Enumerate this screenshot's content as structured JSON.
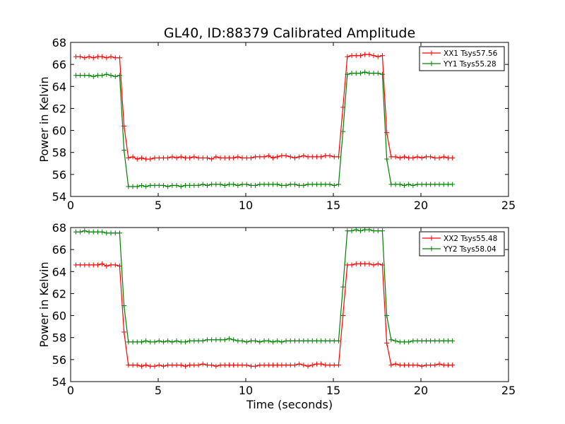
{
  "title": "GL40, ID:88379 Calibrated Amplitude",
  "xlabel": "Time (seconds)",
  "ylabel": "Power in Kelvin",
  "colors": {
    "red": "#ff0000",
    "green": "#008000"
  },
  "chart_data": [
    {
      "type": "line",
      "title": "GL40, ID:88379 Calibrated Amplitude",
      "xlabel": "",
      "ylabel": "Power in Kelvin",
      "xlim": [
        0,
        25
      ],
      "ylim": [
        54,
        68
      ],
      "xticks": [
        "0",
        "5",
        "10",
        "15",
        "20",
        "25"
      ],
      "yticks": [
        "54",
        "56",
        "58",
        "60",
        "62",
        "64",
        "66",
        "68"
      ],
      "legend_position": "top-right",
      "x": [
        0.3,
        0.55,
        0.8,
        1.05,
        1.3,
        1.55,
        1.8,
        2.05,
        2.3,
        2.55,
        2.8,
        3.05,
        3.3,
        3.55,
        3.8,
        4.05,
        4.3,
        4.55,
        4.8,
        5.05,
        5.3,
        5.55,
        5.8,
        6.05,
        6.3,
        6.55,
        6.8,
        7.05,
        7.3,
        7.55,
        7.8,
        8.05,
        8.3,
        8.55,
        8.8,
        9.05,
        9.3,
        9.55,
        9.8,
        10.05,
        10.3,
        10.55,
        10.8,
        11.05,
        11.3,
        11.55,
        11.8,
        12.05,
        12.3,
        12.55,
        12.8,
        13.05,
        13.3,
        13.55,
        13.8,
        14.05,
        14.3,
        14.55,
        14.8,
        15.05,
        15.3,
        15.55,
        15.8,
        16.05,
        16.3,
        16.55,
        16.8,
        17.05,
        17.3,
        17.55,
        17.8,
        18.05,
        18.3,
        18.55,
        18.8,
        19.05,
        19.3,
        19.55,
        19.8,
        20.05,
        20.3,
        20.55,
        20.8,
        21.05,
        21.3,
        21.55,
        21.8
      ],
      "series": [
        {
          "name": "XX1 Tsys57.56",
          "color": "#ff0000",
          "values": [
            66.7,
            66.7,
            66.6,
            66.7,
            66.6,
            66.7,
            66.7,
            66.6,
            66.7,
            66.6,
            66.6,
            60.4,
            57.5,
            57.6,
            57.4,
            57.5,
            57.4,
            57.4,
            57.5,
            57.5,
            57.5,
            57.5,
            57.6,
            57.5,
            57.6,
            57.5,
            57.5,
            57.6,
            57.5,
            57.5,
            57.5,
            57.4,
            57.6,
            57.5,
            57.5,
            57.5,
            57.5,
            57.6,
            57.5,
            57.5,
            57.5,
            57.6,
            57.6,
            57.6,
            57.7,
            57.5,
            57.6,
            57.7,
            57.7,
            57.6,
            57.5,
            57.6,
            57.7,
            57.6,
            57.6,
            57.6,
            57.6,
            57.7,
            57.7,
            57.6,
            57.6,
            62.1,
            66.7,
            66.8,
            66.8,
            66.8,
            66.9,
            66.9,
            66.8,
            66.7,
            66.8,
            59.8,
            57.6,
            57.6,
            57.5,
            57.6,
            57.5,
            57.5,
            57.6,
            57.5,
            57.6,
            57.6,
            57.5,
            57.5,
            57.6,
            57.5,
            57.5
          ]
        },
        {
          "name": "YY1 Tsys55.28",
          "color": "#008000",
          "values": [
            65.0,
            65.0,
            65.0,
            65.0,
            64.9,
            65.0,
            65.0,
            65.1,
            65.0,
            64.9,
            65.0,
            58.2,
            54.9,
            54.9,
            54.9,
            55.0,
            54.9,
            55.0,
            55.0,
            55.0,
            55.0,
            54.9,
            55.0,
            55.0,
            54.9,
            55.0,
            55.0,
            55.0,
            55.0,
            55.1,
            55.0,
            55.1,
            55.1,
            55.1,
            55.0,
            55.1,
            55.1,
            55.0,
            55.1,
            55.1,
            55.0,
            55.0,
            55.1,
            55.1,
            55.1,
            55.1,
            55.1,
            55.0,
            55.0,
            55.1,
            55.1,
            55.0,
            55.0,
            55.1,
            55.1,
            55.1,
            55.1,
            55.1,
            55.1,
            55.0,
            55.1,
            59.9,
            65.1,
            65.2,
            65.2,
            65.2,
            65.3,
            65.2,
            65.2,
            65.2,
            65.1,
            57.4,
            55.1,
            55.1,
            55.1,
            55.0,
            55.1,
            55.0,
            55.1,
            55.1,
            55.1,
            55.1,
            55.1,
            55.1,
            55.1,
            55.1,
            55.1
          ]
        }
      ]
    },
    {
      "type": "line",
      "title": "",
      "xlabel": "Time (seconds)",
      "ylabel": "Power in Kelvin",
      "xlim": [
        0,
        25
      ],
      "ylim": [
        54,
        68
      ],
      "xticks": [
        "0",
        "5",
        "10",
        "15",
        "20",
        "25"
      ],
      "yticks": [
        "54",
        "56",
        "58",
        "60",
        "62",
        "64",
        "66",
        "68"
      ],
      "legend_position": "top-right",
      "x": [
        0.3,
        0.55,
        0.8,
        1.05,
        1.3,
        1.55,
        1.8,
        2.05,
        2.3,
        2.55,
        2.8,
        3.05,
        3.3,
        3.55,
        3.8,
        4.05,
        4.3,
        4.55,
        4.8,
        5.05,
        5.3,
        5.55,
        5.8,
        6.05,
        6.3,
        6.55,
        6.8,
        7.05,
        7.3,
        7.55,
        7.8,
        8.05,
        8.3,
        8.55,
        8.8,
        9.05,
        9.3,
        9.55,
        9.8,
        10.05,
        10.3,
        10.55,
        10.8,
        11.05,
        11.3,
        11.55,
        11.8,
        12.05,
        12.3,
        12.55,
        12.8,
        13.05,
        13.3,
        13.55,
        13.8,
        14.05,
        14.3,
        14.55,
        14.8,
        15.05,
        15.3,
        15.55,
        15.8,
        16.05,
        16.3,
        16.55,
        16.8,
        17.05,
        17.3,
        17.55,
        17.8,
        18.05,
        18.3,
        18.55,
        18.8,
        19.05,
        19.3,
        19.55,
        19.8,
        20.05,
        20.3,
        20.55,
        20.8,
        21.05,
        21.3,
        21.55,
        21.8
      ],
      "series": [
        {
          "name": "XX2 Tsys55.48",
          "color": "#ff0000",
          "values": [
            64.6,
            64.6,
            64.6,
            64.6,
            64.6,
            64.6,
            64.7,
            64.5,
            64.6,
            64.6,
            64.5,
            58.5,
            55.5,
            55.5,
            55.5,
            55.4,
            55.5,
            55.4,
            55.4,
            55.5,
            55.4,
            55.5,
            55.5,
            55.5,
            55.5,
            55.4,
            55.5,
            55.5,
            55.5,
            55.6,
            55.5,
            55.5,
            55.4,
            55.5,
            55.5,
            55.5,
            55.5,
            55.5,
            55.5,
            55.5,
            55.4,
            55.4,
            55.5,
            55.5,
            55.5,
            55.5,
            55.5,
            55.5,
            55.5,
            55.5,
            55.5,
            55.6,
            55.5,
            55.4,
            55.5,
            55.6,
            55.6,
            55.5,
            55.5,
            55.5,
            55.5,
            60.0,
            64.6,
            64.6,
            64.7,
            64.7,
            64.7,
            64.7,
            64.6,
            64.7,
            64.6,
            57.5,
            55.5,
            55.6,
            55.5,
            55.5,
            55.5,
            55.5,
            55.5,
            55.4,
            55.5,
            55.5,
            55.5,
            55.6,
            55.5,
            55.5,
            55.5
          ]
        },
        {
          "name": "YY2 Tsys58.04",
          "color": "#008000",
          "values": [
            67.6,
            67.6,
            67.7,
            67.6,
            67.6,
            67.6,
            67.6,
            67.5,
            67.5,
            67.5,
            67.5,
            60.9,
            57.6,
            57.6,
            57.6,
            57.6,
            57.7,
            57.6,
            57.6,
            57.7,
            57.6,
            57.7,
            57.6,
            57.7,
            57.6,
            57.6,
            57.7,
            57.7,
            57.7,
            57.7,
            57.8,
            57.8,
            57.8,
            57.8,
            57.8,
            57.9,
            57.8,
            57.7,
            57.7,
            57.6,
            57.7,
            57.7,
            57.6,
            57.7,
            57.7,
            57.6,
            57.7,
            57.6,
            57.7,
            57.7,
            57.7,
            57.7,
            57.7,
            57.7,
            57.7,
            57.7,
            57.7,
            57.7,
            57.7,
            57.7,
            57.7,
            62.6,
            67.7,
            67.7,
            67.8,
            67.7,
            67.8,
            67.8,
            67.7,
            67.7,
            67.7,
            60.0,
            57.8,
            57.7,
            57.6,
            57.6,
            57.6,
            57.7,
            57.7,
            57.7,
            57.7,
            57.7,
            57.7,
            57.7,
            57.7,
            57.7,
            57.7
          ]
        }
      ]
    }
  ]
}
